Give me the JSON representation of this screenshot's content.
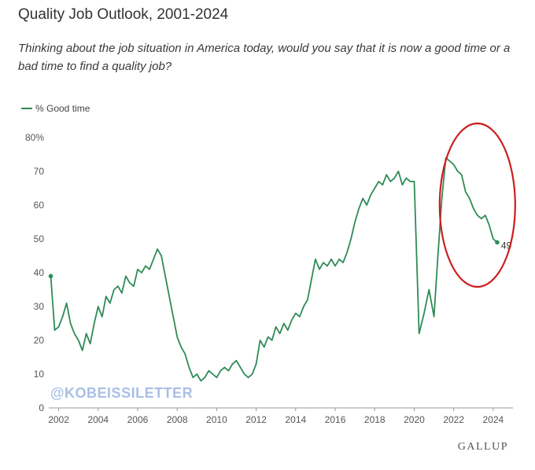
{
  "title": "Quality Job Outlook, 2001-2024",
  "subtitle": "Thinking about the job situation in America today, would you say that it is now a good time or a bad time to find a quality job?",
  "watermark": "@KOBEISSILETTER",
  "source": "GALLUP",
  "colors": {
    "line": "#2e8b57",
    "annotation": "#cc1f1f",
    "axis": "#999999"
  },
  "chart_data": {
    "type": "line",
    "title": "Quality Job Outlook, 2001-2024",
    "xlabel": "",
    "ylabel": "",
    "xlim": [
      2001.5,
      2025
    ],
    "ylim": [
      0,
      80
    ],
    "y_ticks": [
      0,
      10,
      20,
      30,
      40,
      50,
      60,
      70,
      80
    ],
    "y_tick_labels": [
      "0",
      "10",
      "20",
      "30",
      "40",
      "50",
      "60",
      "70",
      "80%"
    ],
    "x_ticks": [
      2002,
      2004,
      2006,
      2008,
      2010,
      2012,
      2014,
      2016,
      2018,
      2020,
      2022,
      2024
    ],
    "x_tick_labels": [
      "2002",
      "2004",
      "2006",
      "2008",
      "2010",
      "2012",
      "2014",
      "2016",
      "2018",
      "2020",
      "2022",
      "2024"
    ],
    "grid": false,
    "legend": "top-left",
    "end_label": "49",
    "annotation": "red-ellipse-2022-2024",
    "series": [
      {
        "name": "% Good time",
        "x": [
          2001.6,
          2001.8,
          2002.0,
          2002.2,
          2002.4,
          2002.6,
          2002.8,
          2003.0,
          2003.2,
          2003.4,
          2003.6,
          2003.8,
          2004.0,
          2004.2,
          2004.4,
          2004.6,
          2004.8,
          2005.0,
          2005.2,
          2005.4,
          2005.6,
          2005.8,
          2006.0,
          2006.2,
          2006.4,
          2006.6,
          2006.8,
          2007.0,
          2007.2,
          2007.4,
          2007.6,
          2007.8,
          2008.0,
          2008.2,
          2008.4,
          2008.6,
          2008.8,
          2009.0,
          2009.2,
          2009.4,
          2009.6,
          2009.8,
          2010.0,
          2010.2,
          2010.4,
          2010.6,
          2010.8,
          2011.0,
          2011.2,
          2011.4,
          2011.6,
          2011.8,
          2012.0,
          2012.2,
          2012.4,
          2012.6,
          2012.8,
          2013.0,
          2013.2,
          2013.4,
          2013.6,
          2013.8,
          2014.0,
          2014.2,
          2014.4,
          2014.6,
          2014.8,
          2015.0,
          2015.2,
          2015.4,
          2015.6,
          2015.8,
          2016.0,
          2016.2,
          2016.4,
          2016.6,
          2016.8,
          2017.0,
          2017.2,
          2017.4,
          2017.6,
          2017.8,
          2018.0,
          2018.2,
          2018.4,
          2018.6,
          2018.8,
          2019.0,
          2019.2,
          2019.4,
          2019.6,
          2019.8,
          2020.0,
          2020.25,
          2020.5,
          2020.75,
          2021.0,
          2021.2,
          2021.4,
          2021.6,
          2021.8,
          2022.0,
          2022.2,
          2022.4,
          2022.6,
          2022.8,
          2023.0,
          2023.2,
          2023.4,
          2023.6,
          2023.8,
          2024.0,
          2024.2
        ],
        "values": [
          39,
          23,
          24,
          27,
          31,
          25,
          22,
          20,
          17,
          22,
          19,
          25,
          30,
          27,
          33,
          31,
          35,
          36,
          34,
          39,
          37,
          36,
          41,
          40,
          42,
          41,
          44,
          47,
          45,
          39,
          33,
          27,
          21,
          18,
          16,
          12,
          9,
          10,
          8,
          9,
          11,
          10,
          9,
          11,
          12,
          11,
          13,
          14,
          12,
          10,
          9,
          10,
          13,
          20,
          18,
          21,
          20,
          24,
          22,
          25,
          23,
          26,
          28,
          27,
          30,
          32,
          38,
          44,
          41,
          43,
          42,
          44,
          42,
          44,
          43,
          46,
          50,
          55,
          59,
          62,
          60,
          63,
          65,
          67,
          66,
          69,
          67,
          68,
          70,
          66,
          68,
          67,
          67,
          22,
          28,
          35,
          27,
          45,
          62,
          74,
          73,
          72,
          70,
          69,
          64,
          62,
          59,
          57,
          56,
          57,
          54,
          50,
          49
        ]
      }
    ]
  }
}
